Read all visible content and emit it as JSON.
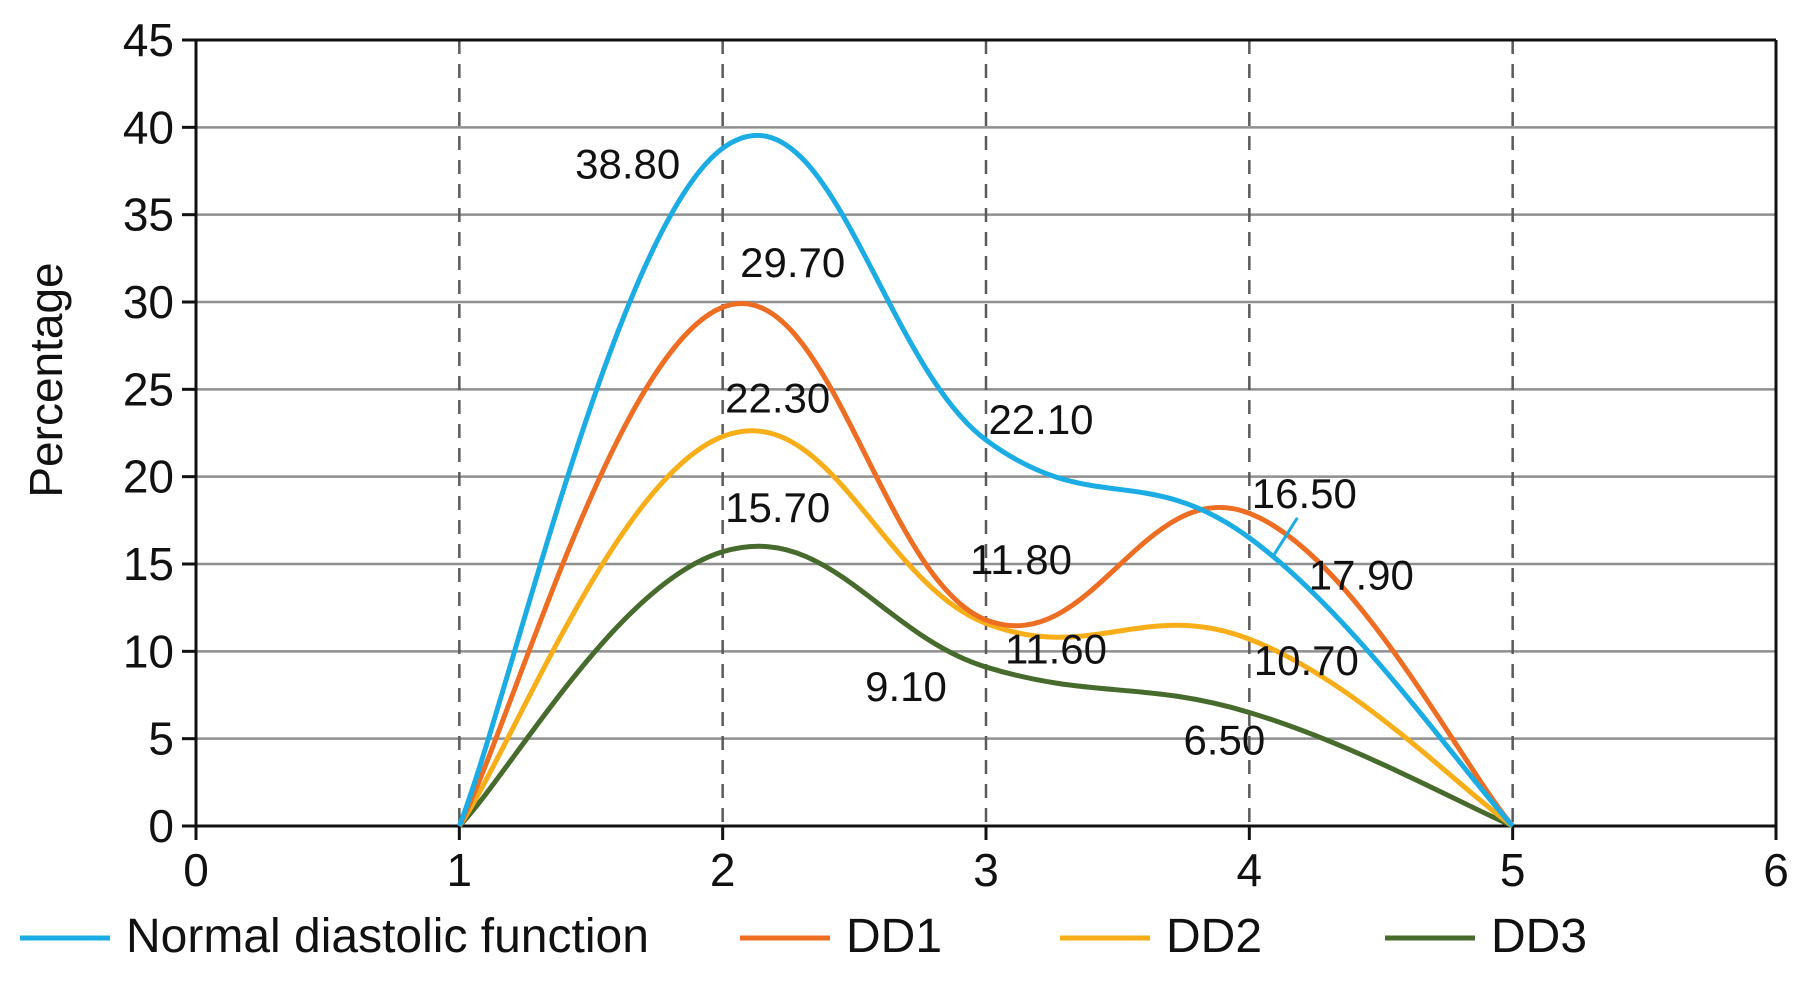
{
  "chart_data": {
    "type": "line",
    "title": "",
    "xlabel": "",
    "ylabel": "Percentage",
    "xlim": [
      0,
      6
    ],
    "ylim": [
      0,
      45
    ],
    "x_ticks": [
      "0",
      "1",
      "2",
      "3",
      "4",
      "5",
      "6"
    ],
    "y_ticks": [
      "0",
      "5",
      "10",
      "15",
      "20",
      "25",
      "30",
      "35",
      "40",
      "45"
    ],
    "x": [
      1,
      2,
      3,
      4,
      5
    ],
    "grid": "horizontal solid, vertical dashed",
    "legend_position": "bottom",
    "series": [
      {
        "name": "Normal diastolic function",
        "color": "#1aace3",
        "values": [
          0,
          38.8,
          22.1,
          16.5,
          0
        ]
      },
      {
        "name": "DD1",
        "color": "#ed6d23",
        "values": [
          0,
          29.7,
          11.8,
          17.9,
          0
        ]
      },
      {
        "name": "DD2",
        "color": "#f8ae19",
        "values": [
          0,
          22.3,
          11.6,
          10.7,
          0
        ]
      },
      {
        "name": "DD3",
        "color": "#476b2c",
        "values": [
          0,
          15.7,
          9.1,
          6.5,
          0
        ]
      }
    ],
    "annotations": [
      {
        "text": "38.80",
        "series": "Normal diastolic function",
        "x": 2
      },
      {
        "text": "22.10",
        "series": "Normal diastolic function",
        "x": 3
      },
      {
        "text": "16.50",
        "series": "Normal diastolic function",
        "x": 4
      },
      {
        "text": "29.70",
        "series": "DD1",
        "x": 2
      },
      {
        "text": "11.80",
        "series": "DD1",
        "x": 3
      },
      {
        "text": "17.90",
        "series": "DD1",
        "x": 4
      },
      {
        "text": "22.30",
        "series": "DD2",
        "x": 2
      },
      {
        "text": "11.60",
        "series": "DD2",
        "x": 3
      },
      {
        "text": "10.70",
        "series": "DD2",
        "x": 4
      },
      {
        "text": "15.70",
        "series": "DD3",
        "x": 2
      },
      {
        "text": "9.10",
        "series": "DD3",
        "x": 3
      },
      {
        "text": "6.50",
        "series": "DD3",
        "x": 4
      }
    ]
  }
}
